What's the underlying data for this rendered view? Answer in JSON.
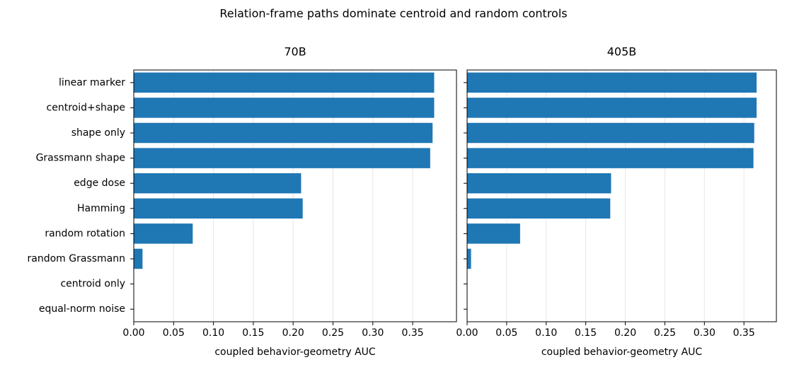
{
  "chart_data": {
    "type": "hbar",
    "title": "Relation-frame paths dominate centroid and random controls",
    "color": "#1f77b4",
    "grid": true,
    "categories": [
      "linear marker",
      "centroid+shape",
      "shape only",
      "Grassmann shape",
      "edge dose",
      "Hamming",
      "random rotation",
      "random Grassmann",
      "centroid only",
      "equal-norm noise"
    ],
    "panels": [
      {
        "title": "70B",
        "xlabel": "coupled behavior-geometry AUC",
        "values": [
          0.377,
          0.377,
          0.375,
          0.372,
          0.21,
          0.212,
          0.074,
          0.011,
          0,
          0
        ],
        "xlim": [
          0,
          0.405
        ],
        "xticks": [
          {
            "value": 0,
            "label": "0.00"
          },
          0.05,
          {
            "value": 0.1,
            "label": "0.10"
          },
          0.15,
          {
            "value": 0.2,
            "label": "0.20"
          },
          0.25,
          {
            "value": 0.3,
            "label": "0.30"
          },
          0.35
        ]
      },
      {
        "title": "405B",
        "xlabel": "coupled behavior-geometry AUC",
        "values": [
          0.366,
          0.366,
          0.363,
          0.362,
          0.182,
          0.181,
          0.067,
          0.005,
          0,
          0
        ],
        "xlim": [
          0,
          0.391
        ],
        "xticks": [
          {
            "value": 0,
            "label": "0.00"
          },
          0.05,
          {
            "value": 0.1,
            "label": "0.10"
          },
          0.15,
          {
            "value": 0.2,
            "label": "0.20"
          },
          0.25,
          {
            "value": 0.3,
            "label": "0.30"
          },
          0.35
        ]
      }
    ]
  }
}
